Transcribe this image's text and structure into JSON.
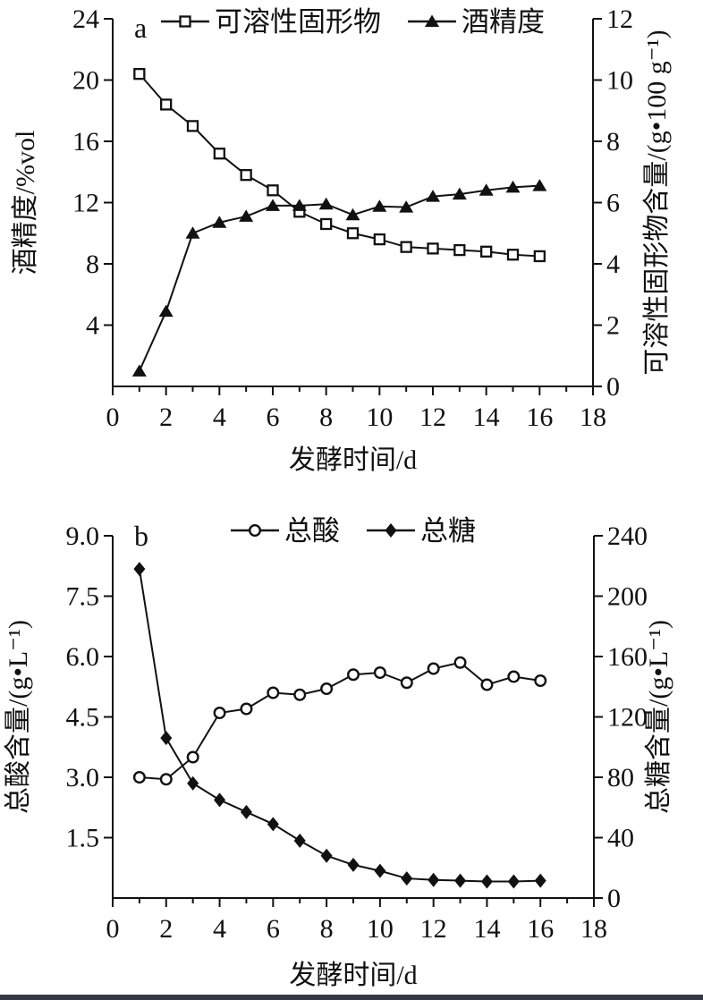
{
  "page": {
    "background": "#ffffff",
    "bottom_bar_color": "#333945",
    "ink_color": "#111111"
  },
  "chart_data": [
    {
      "id": "chart-a",
      "type": "line",
      "panel_label": "a",
      "xlabel": "发酵时间/d",
      "ylabel_left": "酒精度/%vol",
      "ylabel_right": "可溶性固形物含量/(g•100 g⁻¹)",
      "xlim": [
        0,
        18
      ],
      "x_tick_labels": [
        0,
        2,
        4,
        6,
        8,
        10,
        12,
        14,
        16,
        18
      ],
      "x_minor_step": 1,
      "ylim_left": [
        0,
        24
      ],
      "yticks_left": {
        "values": [
          4,
          8,
          12,
          16,
          20,
          24
        ],
        "labels": [
          "4",
          "8",
          "12",
          "16",
          "20",
          "24"
        ]
      },
      "ylim_right": [
        0,
        12
      ],
      "yticks_right": {
        "values": [
          0,
          2,
          4,
          6,
          8,
          10,
          12
        ],
        "labels": [
          "0",
          "2",
          "4",
          "6",
          "8",
          "10",
          "12"
        ]
      },
      "x": [
        1,
        2,
        3,
        4,
        5,
        6,
        7,
        8,
        9,
        10,
        11,
        12,
        13,
        14,
        15,
        16
      ],
      "series": [
        {
          "key": "soluble-solids",
          "name": "可溶性固形物",
          "axis": "right",
          "marker": "square-open",
          "values": [
            10.2,
            9.2,
            8.5,
            7.6,
            6.9,
            6.4,
            5.7,
            5.3,
            5.0,
            4.8,
            4.55,
            4.5,
            4.45,
            4.4,
            4.3,
            4.25
          ]
        },
        {
          "key": "alcohol",
          "name": "酒精度",
          "axis": "left",
          "marker": "triangle-filled",
          "values": [
            1.0,
            4.9,
            10.0,
            10.7,
            11.1,
            11.8,
            11.8,
            11.9,
            11.2,
            11.75,
            11.7,
            12.4,
            12.55,
            12.8,
            13.0,
            13.1
          ]
        }
      ],
      "legend_position": "top-center",
      "grid": false
    },
    {
      "id": "chart-b",
      "type": "line",
      "panel_label": "b",
      "xlabel": "发酵时间/d",
      "ylabel_left": "总酸含量/(g•L⁻¹)",
      "ylabel_right": "总糖含量/(g•L⁻¹)",
      "xlim": [
        0,
        18
      ],
      "x_tick_labels": [
        0,
        2,
        4,
        6,
        8,
        10,
        12,
        14,
        16,
        18
      ],
      "x_minor_step": 1,
      "ylim_left": [
        0,
        9
      ],
      "yticks_left": {
        "values": [
          1.5,
          3.0,
          4.5,
          6.0,
          7.5,
          9.0
        ],
        "labels": [
          "1.5",
          "3.0",
          "4.5",
          "6.0",
          "7.5",
          "9.0"
        ]
      },
      "ylim_right": [
        0,
        240
      ],
      "yticks_right": {
        "values": [
          0,
          40,
          80,
          120,
          160,
          200,
          240
        ],
        "labels": [
          "0",
          "40",
          "80",
          "120",
          "160",
          "200",
          "240"
        ]
      },
      "x": [
        1,
        2,
        3,
        4,
        5,
        6,
        7,
        8,
        9,
        10,
        11,
        12,
        13,
        14,
        15,
        16
      ],
      "series": [
        {
          "key": "total-acid",
          "name": "总酸",
          "axis": "left",
          "marker": "circle-open",
          "values": [
            3.0,
            2.95,
            3.5,
            4.6,
            4.7,
            5.1,
            5.05,
            5.2,
            5.55,
            5.6,
            5.35,
            5.7,
            5.85,
            5.3,
            5.5,
            5.4
          ]
        },
        {
          "key": "total-sugar",
          "name": "总糖",
          "axis": "right",
          "marker": "diamond-filled",
          "values": [
            218,
            106,
            76,
            65,
            57,
            49,
            38,
            28,
            22,
            18,
            13,
            12,
            11.5,
            11,
            11,
            11.5
          ]
        }
      ],
      "legend_position": "top-center",
      "grid": false
    }
  ]
}
